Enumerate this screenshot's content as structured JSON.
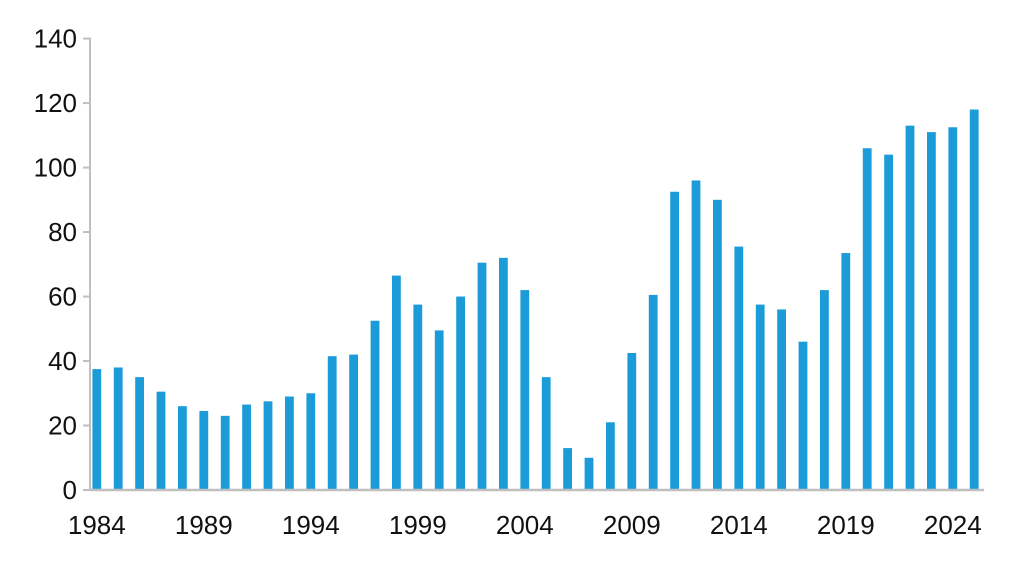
{
  "chart_data": {
    "type": "bar",
    "title": "",
    "xlabel": "",
    "ylabel": "",
    "x": [
      1984,
      1985,
      1986,
      1987,
      1988,
      1989,
      1990,
      1991,
      1992,
      1993,
      1994,
      1995,
      1996,
      1997,
      1998,
      1999,
      2000,
      2001,
      2002,
      2003,
      2004,
      2005,
      2006,
      2007,
      2008,
      2009,
      2010,
      2011,
      2012,
      2013,
      2014,
      2015,
      2016,
      2017,
      2018,
      2019,
      2020,
      2021,
      2022,
      2023,
      2024,
      2025
    ],
    "values": [
      37.5,
      38,
      35,
      30.5,
      26,
      24.5,
      23,
      26.5,
      27.5,
      29,
      30,
      41.5,
      42,
      52.5,
      66.5,
      57.5,
      49.5,
      60,
      70.5,
      72,
      62,
      35,
      13,
      10,
      21,
      42.5,
      60.5,
      92.5,
      96,
      90,
      75.5,
      57.5,
      56,
      46,
      62,
      73.5,
      106,
      104,
      113,
      111,
      112.5,
      118
    ],
    "ylim": [
      0,
      140
    ],
    "y_ticks": [
      0,
      20,
      40,
      60,
      80,
      100,
      120,
      140
    ],
    "x_tick_labels": [
      "1984",
      "1989",
      "1994",
      "1999",
      "2004",
      "2009",
      "2014",
      "2019",
      "2024"
    ],
    "x_tick_every": 5,
    "grid": false,
    "legend_position": "none",
    "bar_color": "#1b9cd8",
    "axis_color": "#bfbfbf",
    "label_color": "#111111"
  }
}
